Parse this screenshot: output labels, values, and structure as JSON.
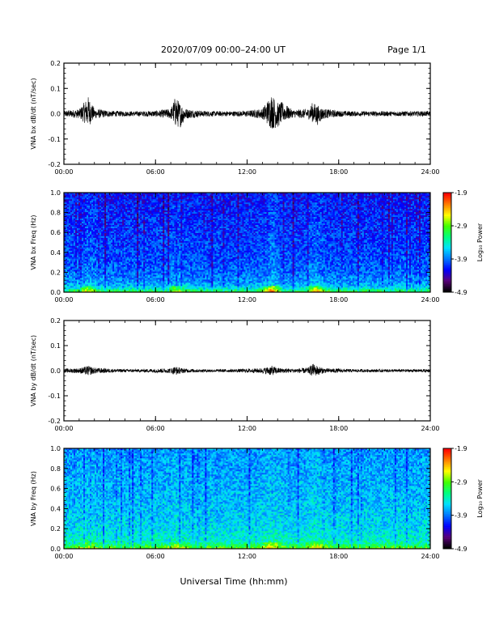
{
  "header": {
    "title": "2020/07/09  00:00–24:00 UT",
    "page_label": "Page 1/1"
  },
  "colors": {
    "trace": "#000000",
    "colormap": [
      "#000000",
      "#5a007a",
      "#0000ff",
      "#0077ff",
      "#00e0ff",
      "#00ff80",
      "#40ff00",
      "#ffff00",
      "#ff8000",
      "#ff0000"
    ]
  },
  "chart_data": [
    {
      "type": "line",
      "ylabel": "VNA bx dB/dt (nT/sec)",
      "xlabel": "",
      "x_ticks": [
        "00:00",
        "06:00",
        "12:00",
        "18:00",
        "24:00"
      ],
      "xlim": [
        0,
        24
      ],
      "ylim": [
        -0.2,
        0.2
      ],
      "y_ticks": [
        "0.2",
        "0.1",
        "0.0",
        "-0.1",
        "-0.2"
      ],
      "series": [
        {
          "x": [
            0,
            1,
            1.6,
            2,
            3,
            4,
            5,
            6,
            7,
            7.3,
            7.6,
            8,
            9,
            10,
            11,
            12,
            13,
            13.6,
            14,
            14.3,
            15,
            16,
            16.3,
            16.6,
            17,
            18,
            19,
            20,
            21,
            22,
            23,
            24
          ],
          "y": [
            0.0,
            0.0,
            0.03,
            0.0,
            0.0,
            0.0,
            0.0,
            0.0,
            0.0,
            0.03,
            -0.02,
            0.0,
            0.0,
            0.0,
            0.0,
            0.0,
            0.0,
            0.03,
            -0.02,
            0.02,
            0.0,
            0.0,
            0.02,
            -0.02,
            0.0,
            0.0,
            0.0,
            0.0,
            0.0,
            0.0,
            0.0,
            0.0
          ],
          "envelope": [
            0.012,
            0.018,
            0.06,
            0.02,
            0.012,
            0.01,
            0.01,
            0.012,
            0.02,
            0.06,
            0.05,
            0.02,
            0.012,
            0.01,
            0.01,
            0.012,
            0.02,
            0.07,
            0.05,
            0.04,
            0.015,
            0.02,
            0.04,
            0.04,
            0.02,
            0.012,
            0.01,
            0.01,
            0.01,
            0.01,
            0.01,
            0.01
          ]
        }
      ]
    },
    {
      "type": "heatmap",
      "ylabel": "VNA bx Freq (Hz)",
      "xlabel": "",
      "x_ticks": [
        "00:00",
        "06:00",
        "12:00",
        "18:00",
        "24:00"
      ],
      "xlim": [
        0,
        24
      ],
      "ylim": [
        0.0,
        1.0
      ],
      "y_ticks": [
        "1.0",
        "0.8",
        "0.6",
        "0.4",
        "0.2",
        "0.0"
      ],
      "colorbar": {
        "label": "Log₁₀ Power",
        "ticks": [
          "-1.9",
          "-2.9",
          "-3.9",
          "-4.9"
        ],
        "range": [
          -4.9,
          -1.9
        ]
      },
      "profile": {
        "freq": [
          0.0,
          0.02,
          0.05,
          0.1,
          0.2,
          0.4,
          0.6,
          0.8,
          1.0
        ],
        "level": [
          -3.0,
          -3.2,
          -3.6,
          -3.8,
          -3.95,
          -4.05,
          -4.1,
          -4.15,
          -4.2
        ]
      },
      "events": {
        "hours": [
          1.6,
          7.4,
          13.6,
          16.5
        ],
        "boost": [
          0.5,
          0.5,
          0.9,
          0.7
        ]
      }
    },
    {
      "type": "line",
      "ylabel": "VNA by dB/dt (nT/sec)",
      "xlabel": "",
      "x_ticks": [
        "00:00",
        "06:00",
        "12:00",
        "18:00",
        "24:00"
      ],
      "xlim": [
        0,
        24
      ],
      "ylim": [
        -0.2,
        0.2
      ],
      "y_ticks": [
        "0.2",
        "0.1",
        "0.0",
        "-0.1",
        "-0.2"
      ],
      "series": [
        {
          "x": [
            0,
            1,
            1.6,
            2,
            3,
            4,
            5,
            6,
            7,
            7.3,
            7.6,
            8,
            9,
            10,
            11,
            12,
            13,
            13.6,
            14,
            14.3,
            15,
            16,
            16.3,
            16.6,
            17,
            18,
            19,
            20,
            21,
            22,
            23,
            24
          ],
          "y": [
            0.0,
            0.0,
            0.0,
            0.0,
            0.0,
            0.0,
            0.0,
            0.0,
            0.0,
            0.0,
            0.0,
            0.0,
            0.0,
            0.0,
            0.0,
            0.0,
            0.0,
            0.0,
            0.0,
            0.0,
            0.0,
            0.0,
            0.01,
            0.0,
            0.0,
            0.0,
            0.0,
            0.0,
            0.0,
            0.0,
            0.0,
            0.0
          ],
          "envelope": [
            0.008,
            0.01,
            0.02,
            0.012,
            0.008,
            0.006,
            0.006,
            0.008,
            0.01,
            0.018,
            0.012,
            0.008,
            0.006,
            0.006,
            0.006,
            0.008,
            0.01,
            0.02,
            0.012,
            0.01,
            0.008,
            0.012,
            0.025,
            0.02,
            0.01,
            0.008,
            0.006,
            0.006,
            0.006,
            0.006,
            0.006,
            0.006
          ]
        }
      ]
    },
    {
      "type": "heatmap",
      "ylabel": "VNA by Freq (Hz)",
      "xlabel": "Universal Time (hh:mm)",
      "x_ticks": [
        "00:00",
        "06:00",
        "12:00",
        "18:00",
        "24:00"
      ],
      "xlim": [
        0,
        24
      ],
      "ylim": [
        0.0,
        1.0
      ],
      "y_ticks": [
        "1.0",
        "0.8",
        "0.6",
        "0.4",
        "0.2",
        "0.0"
      ],
      "colorbar": {
        "label": "Log₁₀ Power",
        "ticks": [
          "-1.9",
          "-2.9",
          "-3.9",
          "-4.9"
        ],
        "range": [
          -4.9,
          -1.9
        ]
      },
      "profile": {
        "freq": [
          0.0,
          0.02,
          0.05,
          0.1,
          0.2,
          0.4,
          0.6,
          0.8,
          1.0
        ],
        "level": [
          -2.8,
          -3.0,
          -3.3,
          -3.45,
          -3.55,
          -3.65,
          -3.7,
          -3.75,
          -3.8
        ]
      },
      "events": {
        "hours": [
          1.6,
          7.4,
          13.6,
          16.5
        ],
        "boost": [
          0.3,
          0.3,
          0.5,
          0.4
        ]
      }
    }
  ]
}
